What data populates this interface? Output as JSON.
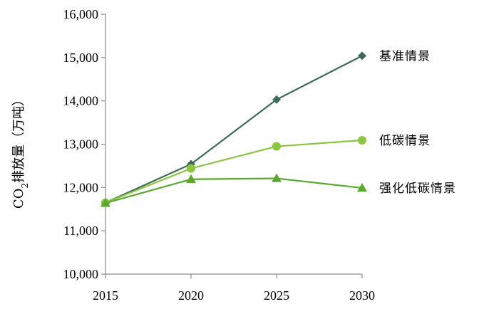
{
  "chart_data": {
    "type": "line",
    "x": [
      2015,
      2020,
      2025,
      2030
    ],
    "x_tick_labels": [
      "2015",
      "2020",
      "2025",
      "2030"
    ],
    "ylim": [
      10000,
      16000
    ],
    "y_ticks": [
      10000,
      11000,
      12000,
      13000,
      14000,
      15000,
      16000
    ],
    "y_tick_labels": [
      "10,000",
      "11,000",
      "12,000",
      "13,000",
      "14,000",
      "15,000",
      "16,000"
    ],
    "ylabel": {
      "prefix": "CO",
      "sub": "2",
      "suffix": "排放量（万吨）"
    },
    "xlabel": "",
    "title": "",
    "grid": false,
    "legend": "inline labels at line ends",
    "series": [
      {
        "name": "基准情景",
        "values": [
          11650,
          12540,
          14030,
          15040
        ],
        "color": "#3e6b57",
        "marker": "diamond"
      },
      {
        "name": "低碳情景",
        "values": [
          11650,
          12440,
          12950,
          13090
        ],
        "color": "#8cc63f",
        "marker": "circle"
      },
      {
        "name": "强化低碳情景",
        "values": [
          11640,
          12190,
          12210,
          11990
        ],
        "color": "#5aa82e",
        "marker": "triangle"
      }
    ]
  }
}
